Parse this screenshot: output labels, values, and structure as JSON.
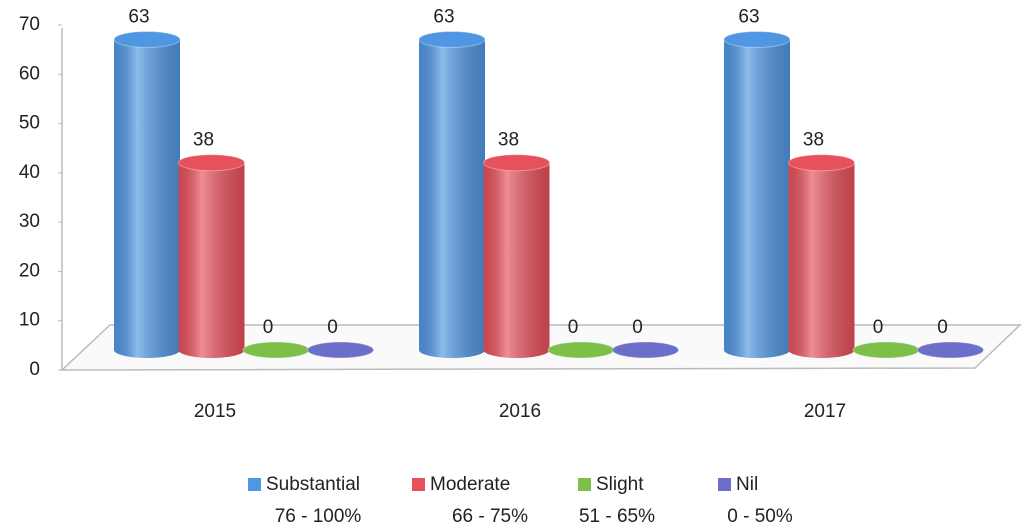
{
  "chart_data": {
    "type": "bar3d",
    "categories": [
      "2015",
      "2016",
      "2017"
    ],
    "series": [
      {
        "name": "Substantial",
        "range": "76 - 100%",
        "color": "#4f97e3",
        "values": [
          63,
          63,
          63
        ]
      },
      {
        "name": "Moderate",
        "range": "66 - 75%",
        "color": "#e8505b",
        "values": [
          38,
          38,
          38
        ]
      },
      {
        "name": "Slight",
        "range": "51 - 65%",
        "color": "#7cc04a",
        "values": [
          0,
          0,
          0
        ]
      },
      {
        "name": "Nil",
        "range": "0 - 50%",
        "color": "#6b6fc9",
        "values": [
          0,
          0,
          0
        ]
      }
    ],
    "ylim": [
      0,
      70
    ],
    "yticks": [
      0,
      10,
      20,
      30,
      40,
      50,
      60,
      70
    ],
    "legend": "bottom"
  }
}
